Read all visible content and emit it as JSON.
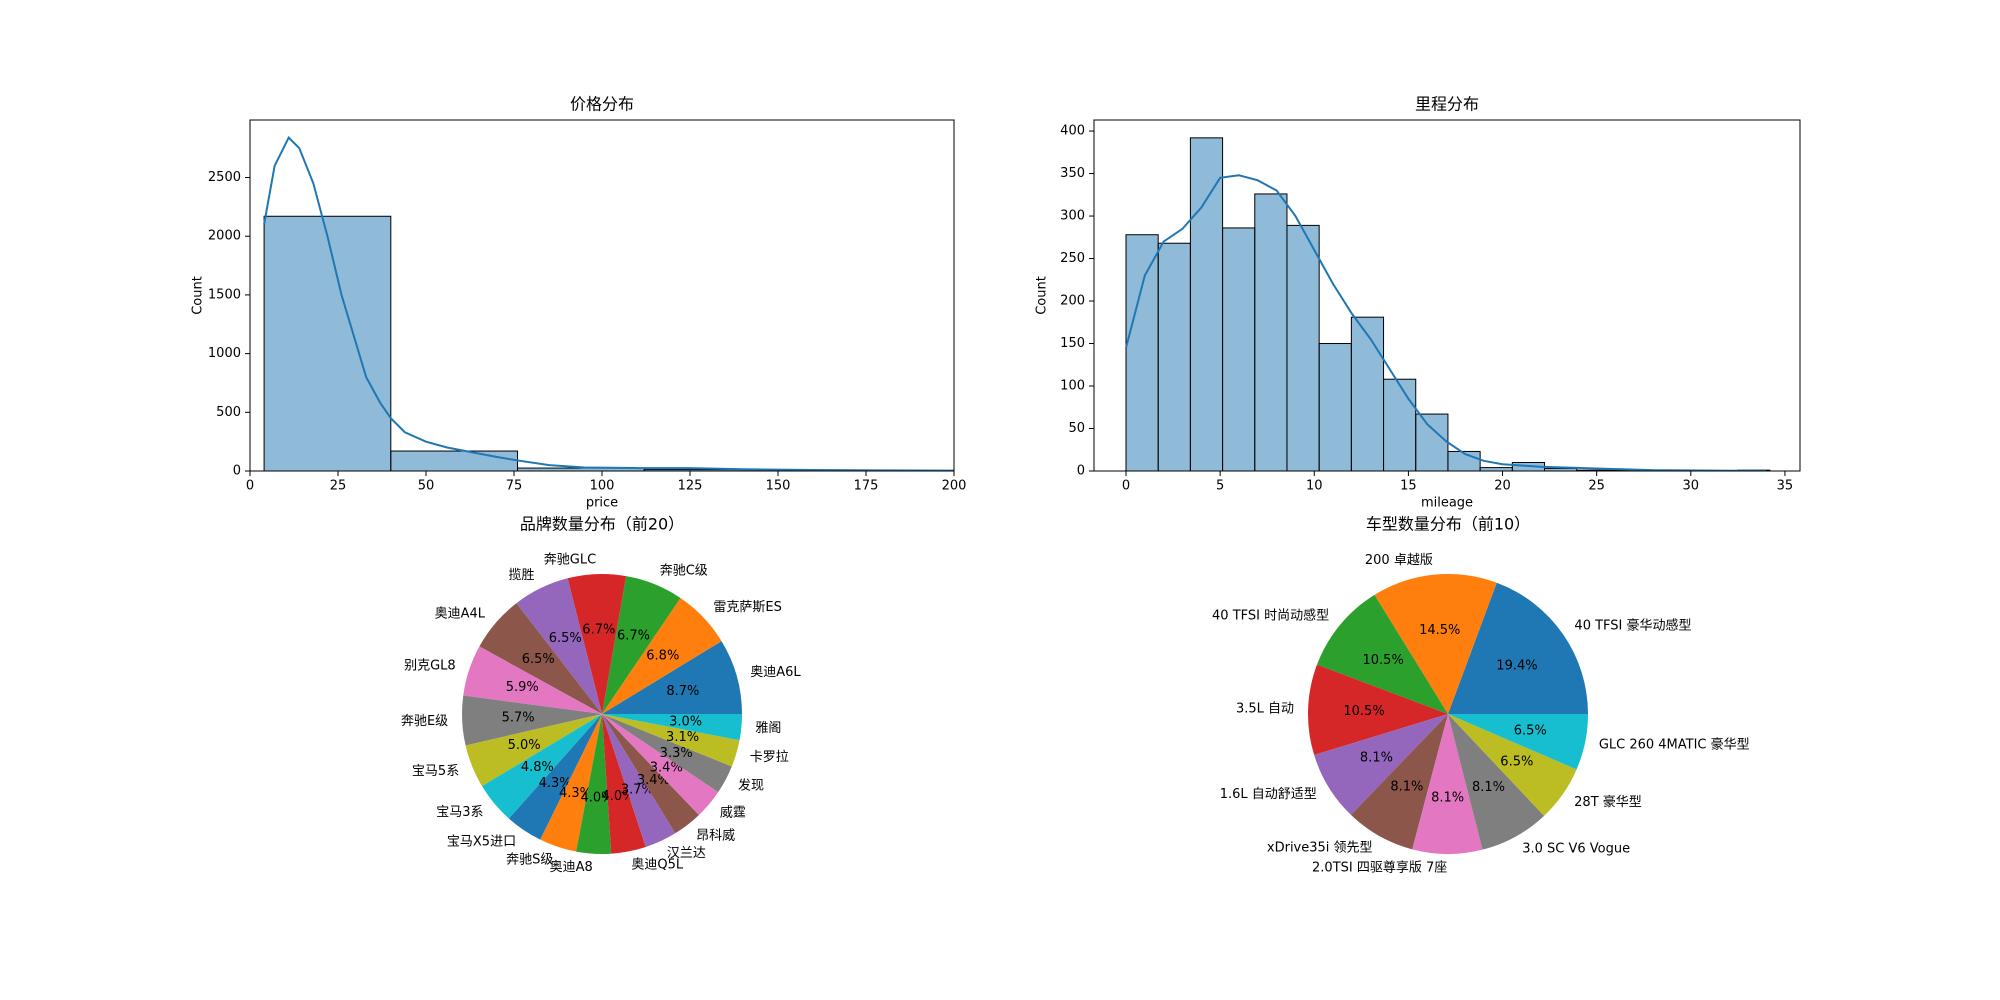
{
  "chart_data": [
    {
      "type": "histogram",
      "title": "价格分布",
      "x_label": "price",
      "y_label": "Count",
      "color": "#1f77b4",
      "bins": [
        4,
        40,
        76,
        112,
        148,
        184,
        220
      ],
      "values": [
        2170,
        170,
        25,
        12,
        6,
        3
      ],
      "line": {
        "x": [
          4,
          7,
          11,
          14,
          18,
          22,
          26,
          30,
          33,
          37,
          40,
          44,
          50,
          56,
          63,
          70,
          76,
          85,
          95,
          110,
          125,
          140,
          160,
          180,
          200
        ],
        "values": [
          2100,
          2600,
          2840,
          2750,
          2450,
          2000,
          1500,
          1100,
          800,
          580,
          450,
          330,
          250,
          200,
          160,
          120,
          90,
          50,
          30,
          25,
          25,
          15,
          8,
          5,
          3
        ]
      },
      "xlim": [
        0,
        200
      ],
      "xticks": [
        0,
        25,
        50,
        75,
        100,
        125,
        150,
        175,
        200
      ],
      "ylim": [
        0,
        2990
      ],
      "yticks": [
        0,
        500,
        1000,
        1500,
        2000,
        2500
      ]
    },
    {
      "type": "histogram",
      "title": "里程分布",
      "x_label": "mileage",
      "y_label": "Count",
      "color": "#1f77b4",
      "bins": [
        0,
        1.71,
        3.42,
        5.13,
        6.84,
        8.55,
        10.26,
        11.97,
        13.68,
        15.39,
        17.1,
        18.81,
        20.52,
        22.23,
        23.94,
        25.65,
        27.36,
        29.07,
        30.78,
        32.49,
        34.2
      ],
      "values": [
        278,
        268,
        392,
        286,
        326,
        289,
        150,
        181,
        108,
        67,
        23,
        4,
        10,
        3,
        1,
        1,
        0,
        0,
        0,
        1
      ],
      "line": {
        "x": [
          0,
          1,
          2,
          3,
          4,
          5,
          6,
          7,
          8,
          9,
          10,
          11,
          12,
          13,
          14,
          15,
          16,
          17,
          18,
          19,
          20,
          22,
          25,
          28,
          34
        ],
        "values": [
          145,
          230,
          270,
          285,
          310,
          345,
          348,
          342,
          330,
          300,
          260,
          220,
          185,
          155,
          120,
          85,
          55,
          35,
          20,
          12,
          8,
          5,
          3,
          1,
          0
        ]
      },
      "xlim": [
        -1.7,
        35.8
      ],
      "xticks": [
        0,
        5,
        10,
        15,
        20,
        25,
        30,
        35
      ],
      "ylim": [
        0,
        413
      ],
      "yticks": [
        0,
        50,
        100,
        150,
        200,
        250,
        300,
        350,
        400
      ]
    },
    {
      "type": "pie",
      "title": "品牌数量分布（前20）",
      "categories": [
        "奥迪A6L",
        "雷克萨斯ES",
        "奔驰C级",
        "奔驰GLC",
        "揽胜",
        "奥迪A4L",
        "别克GL8",
        "奔驰E级",
        "宝马5系",
        "宝马3系",
        "宝马X5进口",
        "奔驰S级",
        "奥迪A8",
        "奥迪Q5L",
        "汉兰达",
        "昂科威",
        "威霆",
        "发现",
        "卡罗拉",
        "雅阁"
      ],
      "values": [
        8.7,
        6.8,
        6.7,
        6.7,
        6.5,
        6.5,
        5.9,
        5.7,
        5.0,
        4.8,
        4.3,
        4.3,
        4.0,
        4.0,
        3.7,
        3.4,
        3.4,
        3.3,
        3.1,
        3.0
      ],
      "value_labels": [
        "8.7%",
        "6.8%",
        "6.7%",
        "6.7%",
        "6.5%",
        "6.5%",
        "5.9%",
        "5.7%",
        "5.0%",
        "4.8%",
        "4.3%",
        "4.3%",
        "4.0%",
        "4.0%",
        "3.7%",
        "3.4%",
        "3.4%",
        "3.3%",
        "3.1%",
        "3.0%"
      ],
      "colors": [
        "#1f77b4",
        "#ff7f0e",
        "#2ca02c",
        "#d62728",
        "#9467bd",
        "#8c564b",
        "#e377c2",
        "#7f7f7f",
        "#bcbd22",
        "#17becf",
        "#1f77b4",
        "#ff7f0e",
        "#2ca02c",
        "#d62728",
        "#9467bd",
        "#8c564b",
        "#e377c2",
        "#7f7f7f",
        "#bcbd22",
        "#17becf"
      ]
    },
    {
      "type": "pie",
      "title": "车型数量分布（前10）",
      "categories": [
        "40 TFSI 豪华动感型",
        "200 卓越版",
        "40 TFSI 时尚动感型",
        "3.5L 自动",
        "1.6L 自动舒适型",
        "xDrive35i 领先型",
        "2.0TSI 四驱尊享版 7座",
        "3.0 SC V6 Vogue",
        "28T 豪华型",
        "GLC 260 4MATIC 豪华型"
      ],
      "values": [
        19.4,
        14.5,
        10.5,
        10.5,
        8.1,
        8.1,
        8.1,
        8.1,
        6.5,
        6.5
      ],
      "value_labels": [
        "19.4%",
        "14.5%",
        "10.5%",
        "10.5%",
        "8.1%",
        "8.1%",
        "8.1%",
        "8.1%",
        "6.5%",
        "6.5%"
      ],
      "colors": [
        "#1f77b4",
        "#ff7f0e",
        "#2ca02c",
        "#d62728",
        "#9467bd",
        "#8c564b",
        "#e377c2",
        "#7f7f7f",
        "#bcbd22",
        "#17becf"
      ]
    }
  ]
}
